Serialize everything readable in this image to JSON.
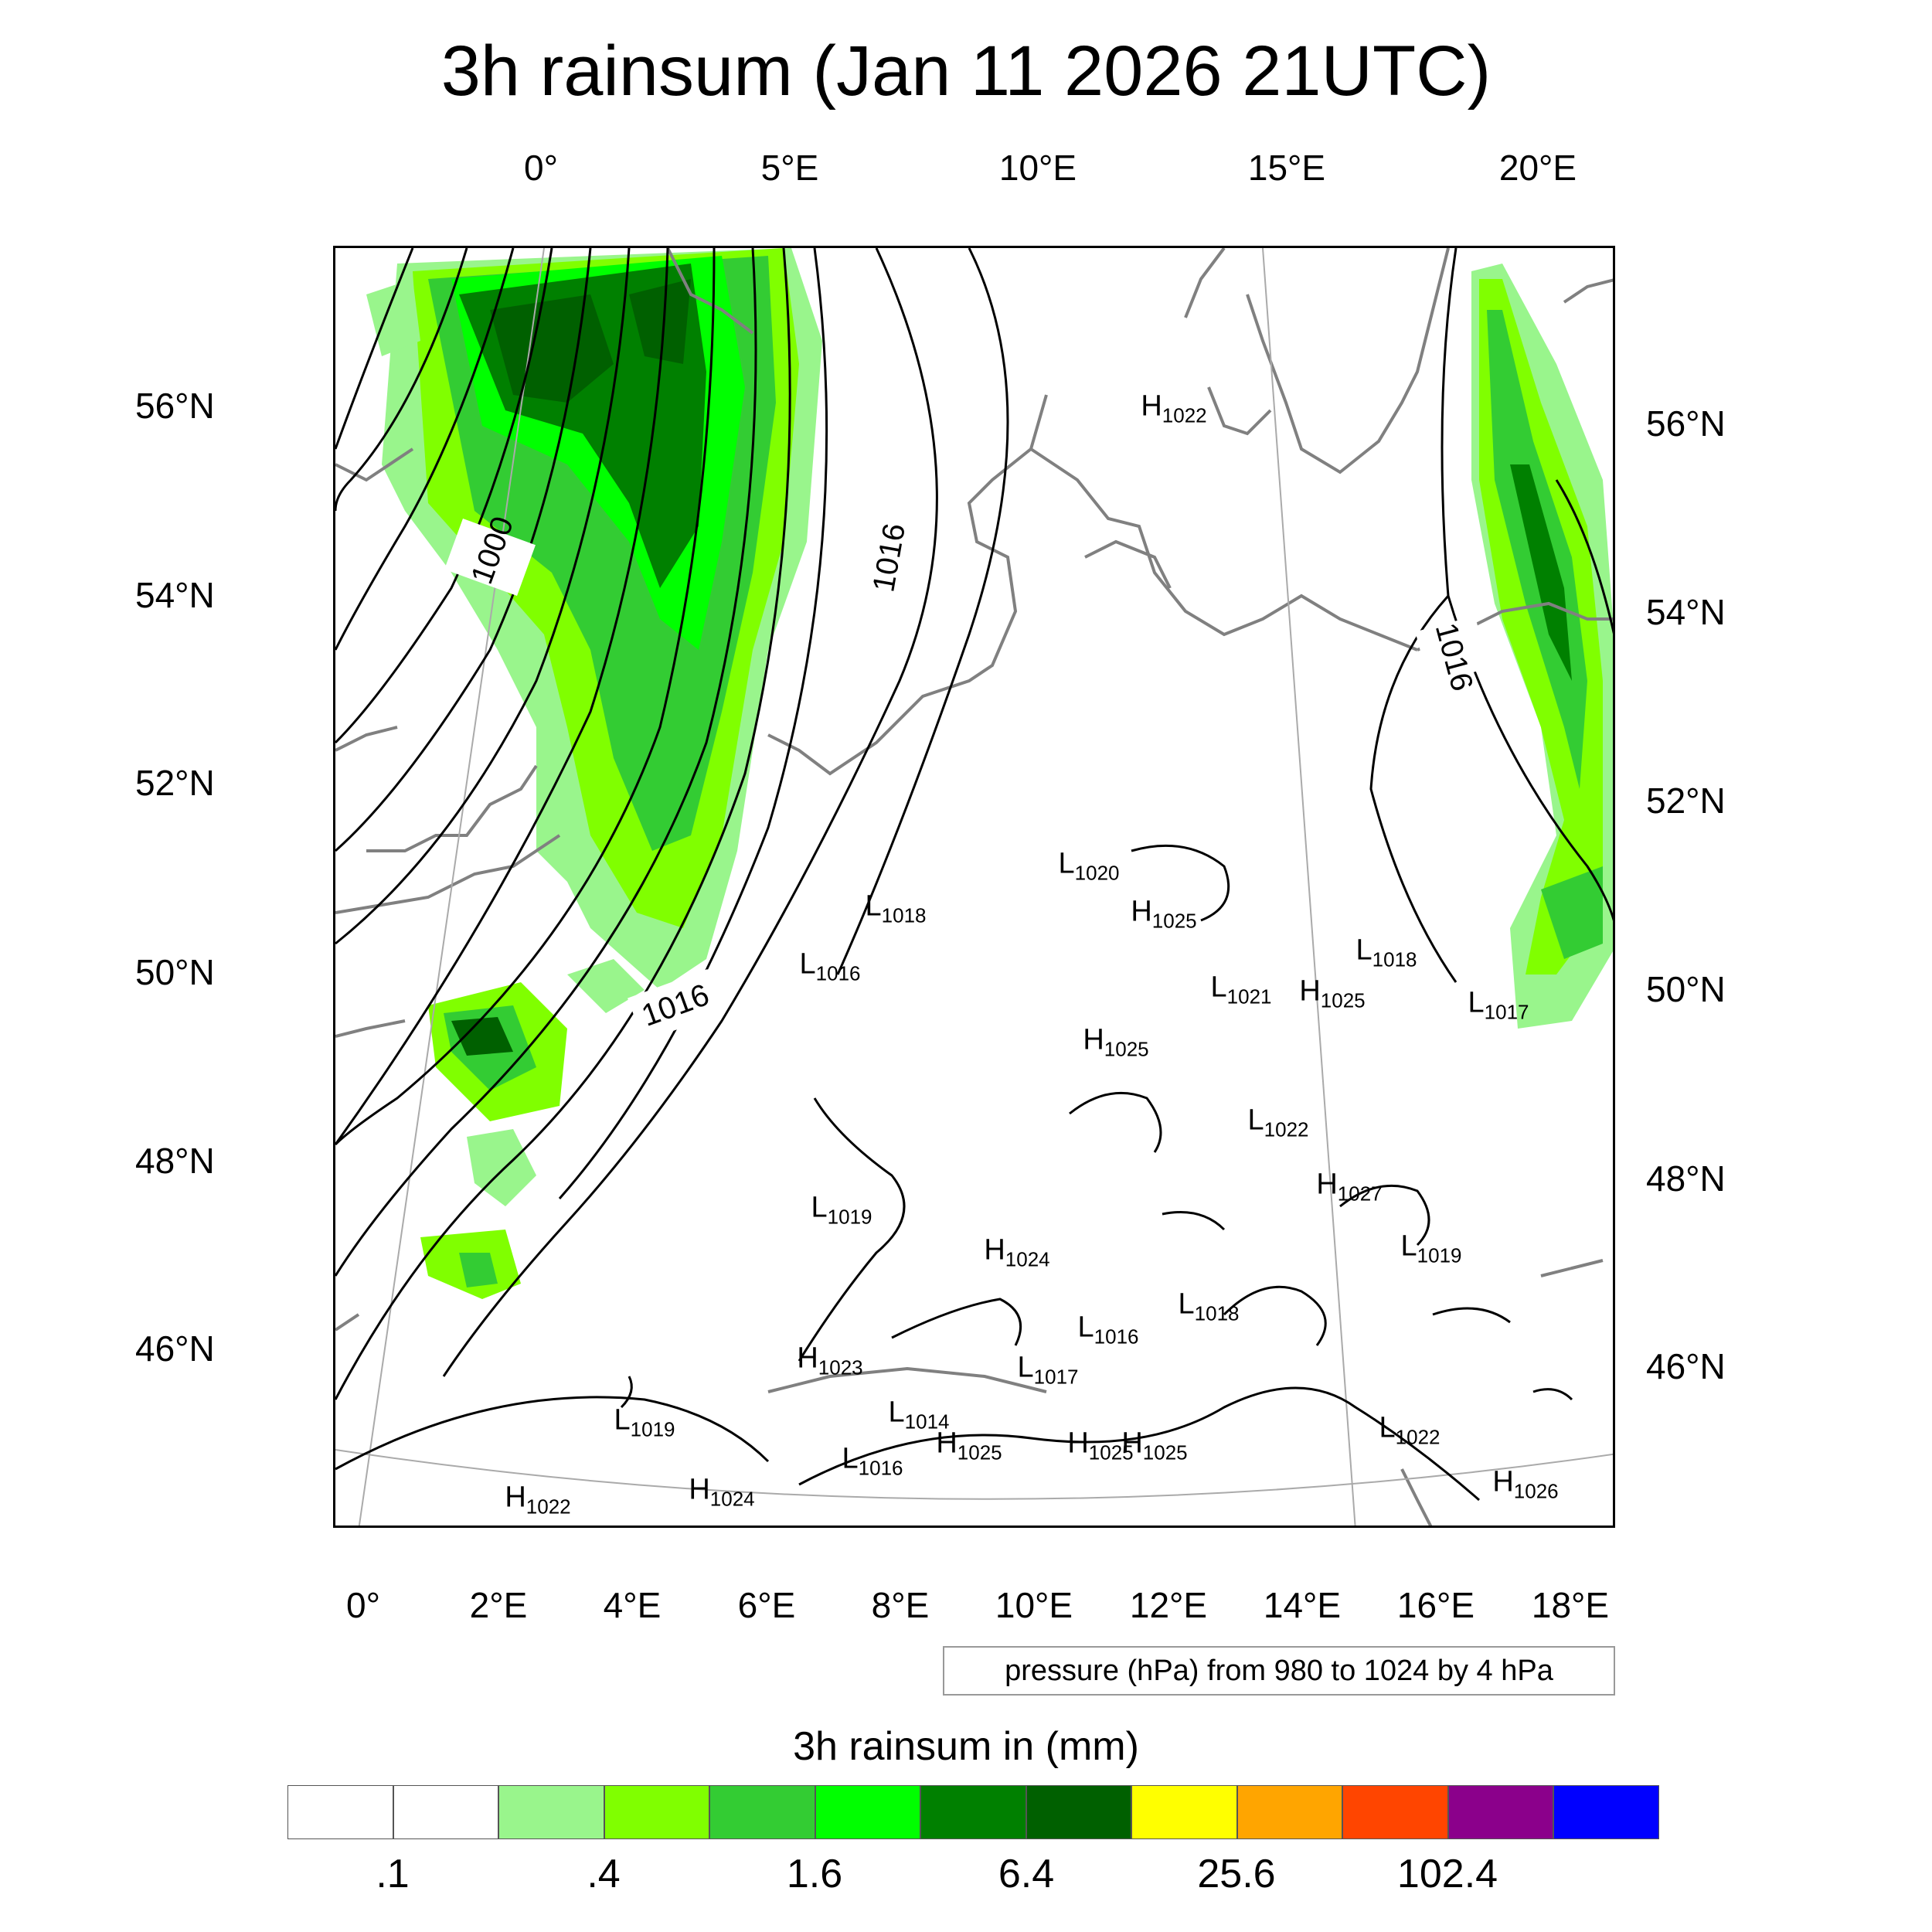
{
  "title": "3h rainsum (Jan 11 2026 21UTC)",
  "top_ticks": [
    "0°",
    "5°E",
    "10°E",
    "15°E",
    "20°E"
  ],
  "bottom_ticks": [
    "0°",
    "2°E",
    "4°E",
    "6°E",
    "8°E",
    "10°E",
    "12°E",
    "14°E",
    "16°E",
    "18°E"
  ],
  "left_ticks": [
    "56°N",
    "54°N",
    "52°N",
    "50°N",
    "48°N",
    "46°N"
  ],
  "right_ticks": [
    "56°N",
    "54°N",
    "52°N",
    "50°N",
    "48°N",
    "46°N"
  ],
  "contour_labels": [
    "1000",
    "1016",
    "1016",
    "1016"
  ],
  "pressure_centers": [
    {
      "type": "H",
      "value": "1022"
    },
    {
      "type": "L",
      "value": "1020"
    },
    {
      "type": "H",
      "value": "1025"
    },
    {
      "type": "L",
      "value": "1018"
    },
    {
      "type": "L",
      "value": "1016"
    },
    {
      "type": "L",
      "value": "1018"
    },
    {
      "type": "L",
      "value": "1021"
    },
    {
      "type": "H",
      "value": "1025"
    },
    {
      "type": "L",
      "value": "1017"
    },
    {
      "type": "H",
      "value": "1025"
    },
    {
      "type": "L",
      "value": "1022"
    },
    {
      "type": "H",
      "value": "1027"
    },
    {
      "type": "L",
      "value": "1019"
    },
    {
      "type": "L",
      "value": "1019"
    },
    {
      "type": "H",
      "value": "1024"
    },
    {
      "type": "L",
      "value": "1018"
    },
    {
      "type": "H",
      "value": "1023"
    },
    {
      "type": "L",
      "value": "1016"
    },
    {
      "type": "L",
      "value": "1017"
    },
    {
      "type": "L",
      "value": "1014"
    },
    {
      "type": "L",
      "value": "1019"
    },
    {
      "type": "H",
      "value": "1025"
    },
    {
      "type": "H",
      "value": "1025"
    },
    {
      "type": "H",
      "value": "1025"
    },
    {
      "type": "L",
      "value": "1022"
    },
    {
      "type": "L",
      "value": "1016"
    },
    {
      "type": "H",
      "value": "1022"
    },
    {
      "type": "H",
      "value": "1024"
    },
    {
      "type": "H",
      "value": "1026"
    }
  ],
  "info_text": "pressure (hPa) from 980 to 1024 by 4 hPa",
  "colorbar": {
    "title": "3h rainsum in (mm)",
    "colors": [
      "#ffffff",
      "#ffffff",
      "#99f58c",
      "#80ff00",
      "#33cc33",
      "#00ff00",
      "#008000",
      "#006000",
      "#ffff00",
      "#ffa500",
      "#ff4500",
      "#8b008b",
      "#0000ff"
    ],
    "labels": [
      ".1",
      ".4",
      "1.6",
      "6.4",
      "25.6",
      "102.4"
    ]
  }
}
